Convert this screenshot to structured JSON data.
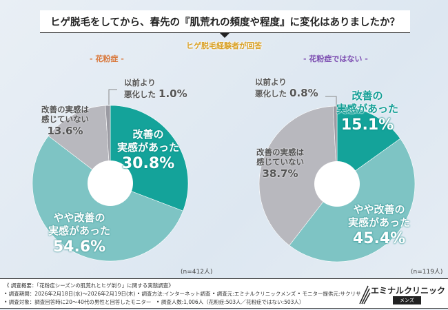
{
  "header": {
    "title": "ヒゲ脱毛をしてから、春先の『肌荒れの頻度や程度』に変化はありましたか？",
    "subtitle": "ヒゲ脱毛経験者が回答"
  },
  "colors": {
    "improved": "#14a39a",
    "somewhat": "#7ec4c4",
    "none": "#b8b8be",
    "worse": "#9a9aa2"
  },
  "chart_data": [
    {
      "type": "pie",
      "title": "- 花粉症 -",
      "n": "(n=412人)",
      "slices": [
        {
          "label": "改善の実感があった",
          "value": 30.8,
          "text": "30.8%"
        },
        {
          "label": "やや改善の実感があった",
          "value": 54.6,
          "text": "54.6%"
        },
        {
          "label": "改善の実感は感じていない",
          "value": 13.6,
          "text": "13.6%"
        },
        {
          "label": "以前より悪化した",
          "value": 1.0,
          "text": "1.0%"
        }
      ]
    },
    {
      "type": "pie",
      "title": "- 花粉症ではない -",
      "n": "(n=119人)",
      "slices": [
        {
          "label": "改善の実感があった",
          "value": 15.1,
          "text": "15.1%"
        },
        {
          "label": "やや改善の実感があった",
          "value": 45.4,
          "text": "45.4%"
        },
        {
          "label": "改善の実感は感じていない",
          "value": 38.7,
          "text": "38.7%"
        },
        {
          "label": "以前より悪化した",
          "value": 0.8,
          "text": "0.8%"
        }
      ]
    }
  ],
  "labels": {
    "improved_1": "改善の",
    "improved_2": "実感があった",
    "somewhat_1": "やや改善の",
    "somewhat_2": "実感があった",
    "none_1": "改善の実感は",
    "none_2": "感じていない",
    "worse_1": "以前より",
    "worse_2": "悪化した"
  },
  "footer": {
    "line1": "《 調査概要：「花粉症シーズンの肌荒れとヒゲ剃り」に関する実態調査》",
    "line2": "• 調査期間：2026年2月18日(水)～2026年2月19日(木) • 調査方法:インターネット調査 • 調査元:エミナルクリニックメンズ • モニター提供元:サクリサ",
    "line3": "• 調査対象：調査回答時に20～40代の男性と回答したモニター　• 調査人数:1,006人（花粉症:503人／花粉症ではない:503人）",
    "logo_name": "エミナルクリニック",
    "logo_sub": "メンズ"
  }
}
